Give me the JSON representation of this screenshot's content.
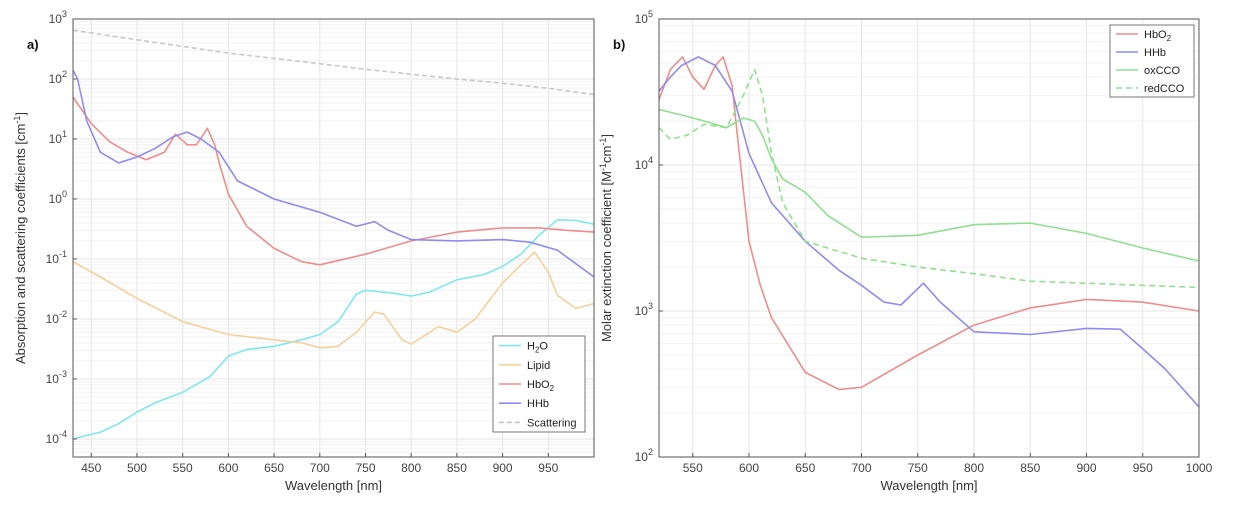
{
  "chart_data": [
    {
      "type": "line",
      "panel_label": "a)",
      "xlabel": "Wavelength [nm]",
      "ylabel": "Absorption and scattering coefficients [cm⁻¹]",
      "ylabel_parts": {
        "base": "Absorption and scattering coefficients [cm",
        "sup": "-1",
        "tail": "]"
      },
      "y_scale": "log",
      "xlim": [
        430,
        1000
      ],
      "ylim": [
        5e-05,
        1000
      ],
      "x_ticks": [
        450,
        500,
        550,
        600,
        650,
        700,
        750,
        800,
        850,
        900,
        950
      ],
      "y_ticks": [
        {
          "value": 0.0001,
          "exp": "-4"
        },
        {
          "value": 0.001,
          "exp": "-3"
        },
        {
          "value": 0.01,
          "exp": "-2"
        },
        {
          "value": 0.1,
          "exp": "-1"
        },
        {
          "value": 1,
          "exp": "0"
        },
        {
          "value": 10,
          "exp": "1"
        },
        {
          "value": 100,
          "exp": "2"
        },
        {
          "value": 1000,
          "exp": "3"
        }
      ],
      "grid": true,
      "legend_position": "bottom-right",
      "series": [
        {
          "name": "H2O",
          "legend_base": "H",
          "legend_sub": "2",
          "legend_tail": "O",
          "color": "#7ee8ec",
          "dash": "",
          "x": [
            430,
            460,
            480,
            500,
            520,
            550,
            580,
            600,
            620,
            650,
            680,
            700,
            720,
            740,
            750,
            780,
            800,
            820,
            850,
            880,
            900,
            920,
            940,
            960,
            980,
            1000
          ],
          "y": [
            0.0001,
            0.00013,
            0.00018,
            0.00028,
            0.0004,
            0.0006,
            0.0011,
            0.0024,
            0.0031,
            0.0035,
            0.0045,
            0.0055,
            0.009,
            0.026,
            0.03,
            0.027,
            0.024,
            0.028,
            0.045,
            0.055,
            0.075,
            0.12,
            0.25,
            0.45,
            0.44,
            0.38
          ]
        },
        {
          "name": "Lipid",
          "legend_base": "Lipid",
          "legend_sub": "",
          "legend_tail": "",
          "color": "#f6d09a",
          "dash": "",
          "x": [
            430,
            460,
            500,
            550,
            600,
            650,
            680,
            700,
            720,
            740,
            760,
            770,
            790,
            800,
            820,
            830,
            850,
            870,
            900,
            920,
            935,
            950,
            960,
            980,
            1000
          ],
          "y": [
            0.09,
            0.05,
            0.022,
            0.009,
            0.0055,
            0.0045,
            0.004,
            0.0033,
            0.0035,
            0.006,
            0.013,
            0.012,
            0.0045,
            0.0038,
            0.006,
            0.0075,
            0.006,
            0.01,
            0.04,
            0.08,
            0.13,
            0.06,
            0.025,
            0.015,
            0.018
          ]
        },
        {
          "name": "HbO2",
          "legend_base": "HbO",
          "legend_sub": "2",
          "legend_tail": "",
          "color": "#f08c8c",
          "dash": "",
          "x": [
            430,
            450,
            470,
            490,
            510,
            530,
            542,
            555,
            565,
            577,
            585,
            590,
            600,
            620,
            650,
            680,
            700,
            750,
            800,
            850,
            900,
            940,
            970,
            1000
          ],
          "y": [
            50,
            18,
            9,
            6,
            4.5,
            6,
            12,
            8,
            8,
            15,
            8,
            4,
            1.2,
            0.35,
            0.15,
            0.09,
            0.08,
            0.12,
            0.2,
            0.28,
            0.33,
            0.33,
            0.3,
            0.28
          ]
        },
        {
          "name": "HHb",
          "legend_base": "HHb",
          "legend_sub": "",
          "legend_tail": "",
          "color": "#8f8cf0",
          "dash": "",
          "x": [
            430,
            435,
            445,
            460,
            480,
            500,
            520,
            540,
            555,
            570,
            590,
            610,
            650,
            700,
            740,
            760,
            775,
            800,
            850,
            900,
            930,
            960,
            1000
          ],
          "y": [
            140,
            100,
            20,
            6,
            4,
            5,
            7,
            11,
            13,
            10,
            6,
            2,
            1,
            0.6,
            0.35,
            0.42,
            0.3,
            0.21,
            0.2,
            0.21,
            0.19,
            0.14,
            0.05
          ]
        },
        {
          "name": "Scattering",
          "legend_base": "Scattering",
          "legend_sub": "",
          "legend_tail": "",
          "color": "#c9c9c9",
          "dash": "5,3",
          "x": [
            430,
            500,
            550,
            600,
            650,
            700,
            750,
            800,
            850,
            900,
            950,
            1000
          ],
          "y": [
            650,
            450,
            350,
            270,
            220,
            180,
            145,
            120,
            100,
            85,
            70,
            55
          ]
        }
      ]
    },
    {
      "type": "line",
      "panel_label": "b)",
      "xlabel": "Wavelength [nm]",
      "ylabel": "Molar extinction coefficient [M⁻¹cm⁻¹]",
      "ylabel_parts": {
        "base": "Molar extinction coefficient [M",
        "sup": "-1",
        "mid": "cm",
        "sup2": "-1",
        "tail": "]"
      },
      "y_scale": "log",
      "xlim": [
        520,
        1000
      ],
      "ylim": [
        100,
        100000
      ],
      "x_ticks": [
        550,
        600,
        650,
        700,
        750,
        800,
        850,
        900,
        950,
        1000
      ],
      "y_ticks": [
        {
          "value": 100,
          "exp": "2"
        },
        {
          "value": 1000,
          "exp": "3"
        },
        {
          "value": 10000,
          "exp": "4"
        },
        {
          "value": 100000,
          "exp": "5"
        }
      ],
      "grid": true,
      "legend_position": "top-right",
      "series": [
        {
          "name": "HbO2",
          "legend_base": "HbO",
          "legend_sub": "2",
          "legend_tail": "",
          "color": "#f08c8c",
          "dash": "",
          "x": [
            520,
            530,
            541,
            550,
            560,
            570,
            577,
            585,
            590,
            600,
            610,
            620,
            650,
            680,
            700,
            750,
            800,
            850,
            900,
            950,
            1000
          ],
          "y": [
            28000,
            45000,
            55000,
            40000,
            33000,
            48000,
            55000,
            35000,
            15000,
            3000,
            1500,
            900,
            380,
            290,
            300,
            500,
            800,
            1050,
            1200,
            1150,
            1000
          ]
        },
        {
          "name": "HHb",
          "legend_base": "HHb",
          "legend_sub": "",
          "legend_tail": "",
          "color": "#8f8cf0",
          "dash": "",
          "x": [
            520,
            530,
            540,
            555,
            570,
            585,
            600,
            620,
            650,
            680,
            700,
            720,
            735,
            755,
            770,
            800,
            850,
            900,
            930,
            950,
            970,
            1000
          ],
          "y": [
            32000,
            40000,
            48000,
            55000,
            48000,
            32000,
            12000,
            5500,
            3000,
            1900,
            1500,
            1150,
            1100,
            1550,
            1150,
            720,
            690,
            760,
            750,
            550,
            400,
            220
          ]
        },
        {
          "name": "oxCCO",
          "legend_base": "oxCCO",
          "legend_sub": "",
          "legend_tail": "",
          "color": "#8fe08f",
          "dash": "",
          "x": [
            520,
            540,
            560,
            580,
            595,
            605,
            612,
            620,
            630,
            650,
            670,
            700,
            750,
            800,
            850,
            900,
            950,
            1000
          ],
          "y": [
            24000,
            22000,
            20000,
            18000,
            21000,
            20000,
            16000,
            11000,
            8000,
            6500,
            4500,
            3200,
            3300,
            3900,
            4000,
            3400,
            2700,
            2200
          ]
        },
        {
          "name": "redCCO",
          "legend_base": "redCCO",
          "legend_sub": "",
          "legend_tail": "",
          "color": "#8fe08f",
          "dash": "6,4",
          "x": [
            520,
            530,
            545,
            560,
            580,
            595,
            605,
            612,
            620,
            630,
            650,
            700,
            750,
            800,
            850,
            900,
            950,
            1000
          ],
          "y": [
            18000,
            15000,
            16000,
            19000,
            18000,
            30000,
            45000,
            30000,
            12000,
            5500,
            3000,
            2300,
            2000,
            1800,
            1600,
            1550,
            1500,
            1450
          ]
        }
      ]
    }
  ]
}
